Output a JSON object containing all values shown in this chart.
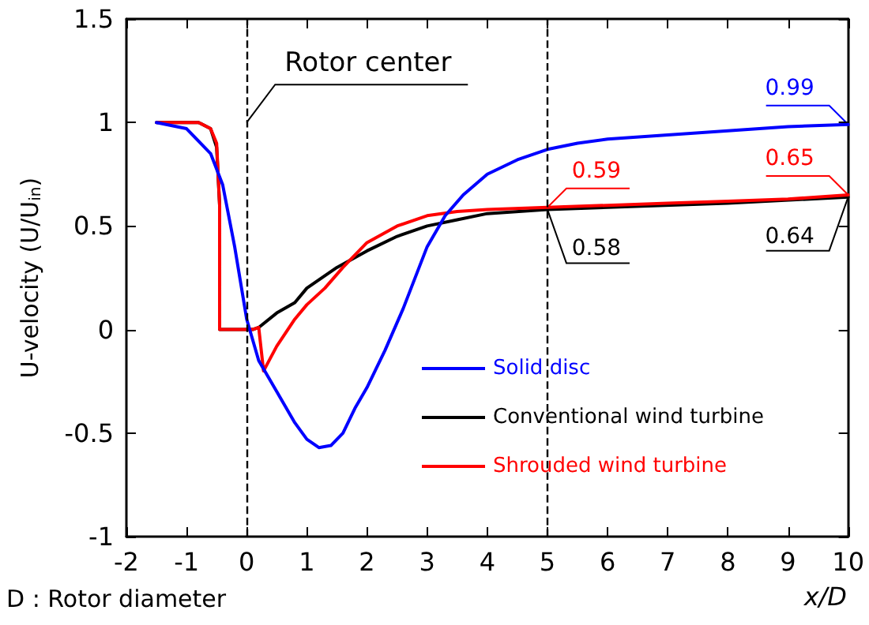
{
  "chart_data": {
    "type": "line",
    "xlabel": "x/D",
    "ylabel": "U-velocity (U/U$_{in}$)",
    "xlim": [
      -2,
      10
    ],
    "xticks": [
      -2,
      -1,
      0,
      1,
      2,
      3,
      4,
      5,
      6,
      7,
      8,
      9,
      10
    ],
    "ylim": [
      -1,
      1.5
    ],
    "yticks": [
      -1,
      -0.5,
      0,
      0.5,
      1,
      1.5
    ],
    "grid": false,
    "legend": "right",
    "marker": "none",
    "line_style": "solid",
    "series": [
      {
        "name": "Solid disc",
        "color": "#0000ff",
        "x": [
          -1.5,
          -1,
          -0.6,
          -0.4,
          -0.2,
          0,
          0.2,
          0.5,
          0.8,
          1,
          1.2,
          1.4,
          1.6,
          1.8,
          2,
          2.3,
          2.6,
          3,
          3.3,
          3.6,
          4,
          4.5,
          5,
          5.5,
          6,
          7,
          8,
          9,
          10
        ],
        "values": [
          1,
          0.97,
          0.85,
          0.7,
          0.4,
          0.05,
          -0.15,
          -0.3,
          -0.45,
          -0.53,
          -0.57,
          -0.56,
          -0.5,
          -0.38,
          -0.28,
          -0.1,
          0.1,
          0.4,
          0.55,
          0.65,
          0.75,
          0.82,
          0.87,
          0.9,
          0.92,
          0.94,
          0.96,
          0.98,
          0.99
        ],
        "value_labels": [
          null,
          null,
          null,
          null,
          null,
          null,
          null,
          null,
          null,
          null,
          null,
          null,
          null,
          null,
          null,
          null,
          null,
          null,
          null,
          null,
          null,
          null,
          null,
          null,
          null,
          null,
          null,
          null,
          "0.99"
        ]
      },
      {
        "name": "Conventional wind turbine",
        "color": "#000000",
        "x": [
          -1.5,
          -0.8,
          -0.6,
          -0.5,
          -0.45,
          -0.45,
          0.1,
          0.2,
          0.5,
          0.8,
          1,
          1.5,
          2,
          2.5,
          3,
          3.5,
          4,
          5,
          6,
          8,
          10
        ],
        "values": [
          1,
          1,
          0.97,
          0.88,
          0.6,
          0,
          0,
          0.01,
          0.08,
          0.13,
          0.2,
          0.3,
          0.38,
          0.45,
          0.5,
          0.53,
          0.56,
          0.58,
          0.59,
          0.61,
          0.64
        ],
        "value_labels": [
          null,
          null,
          null,
          null,
          null,
          null,
          null,
          null,
          null,
          null,
          null,
          null,
          null,
          null,
          null,
          null,
          null,
          "0.58",
          null,
          null,
          "0.64"
        ]
      },
      {
        "name": "Shrouded wind turbine",
        "color": "#ff0000",
        "x": [
          -1.5,
          -0.8,
          -0.6,
          -0.5,
          -0.45,
          -0.45,
          0.1,
          0.2,
          0.28,
          0.5,
          0.8,
          1,
          1.3,
          1.6,
          2,
          2.5,
          3,
          3.5,
          4,
          5,
          6,
          7,
          8,
          9,
          10
        ],
        "values": [
          1,
          1,
          0.97,
          0.9,
          0.6,
          0,
          0,
          0.01,
          -0.2,
          -0.08,
          0.05,
          0.12,
          0.2,
          0.3,
          0.42,
          0.5,
          0.55,
          0.57,
          0.58,
          0.59,
          0.6,
          0.61,
          0.62,
          0.63,
          0.65
        ],
        "value_labels": [
          null,
          null,
          null,
          null,
          null,
          null,
          null,
          null,
          null,
          null,
          null,
          null,
          null,
          null,
          null,
          null,
          null,
          null,
          null,
          "0.59",
          null,
          null,
          null,
          null,
          "0.65"
        ]
      }
    ],
    "ref_lines": [
      {
        "axis": "x",
        "value": 0,
        "label": "Rotor center",
        "line_style": "dashed",
        "color": "#000000"
      },
      {
        "axis": "x",
        "value": 5,
        "line_style": "dashed",
        "color": "#000000"
      }
    ],
    "annotations": [
      "D : Rotor diameter"
    ]
  }
}
